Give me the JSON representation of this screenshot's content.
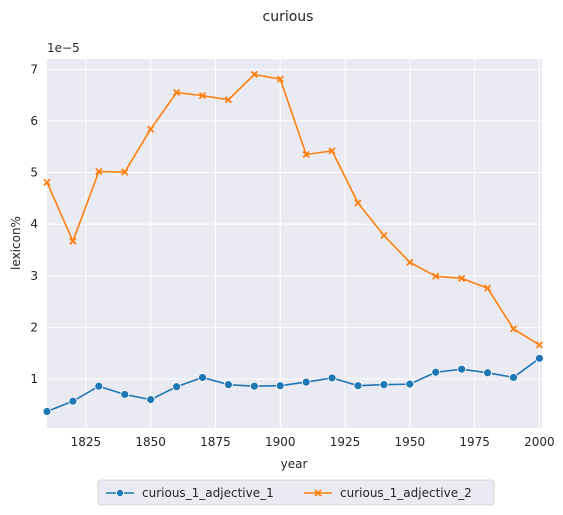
{
  "chart_data": {
    "type": "line",
    "title": "curious",
    "xlabel": "year",
    "ylabel": "lexicon%",
    "y_scale_note": "1e−5",
    "xlim": [
      1810,
      2001
    ],
    "ylim": [
      0.05,
      7.2
    ],
    "x_ticks": [
      1825,
      1850,
      1875,
      1900,
      1925,
      1950,
      1975,
      2000
    ],
    "y_ticks": [
      1,
      2,
      3,
      4,
      5,
      6,
      7
    ],
    "grid": true,
    "legend_placement": "bottom-center",
    "x": [
      1810,
      1820,
      1830,
      1840,
      1850,
      1860,
      1870,
      1880,
      1890,
      1900,
      1910,
      1920,
      1930,
      1940,
      1950,
      1960,
      1970,
      1980,
      1990,
      2000
    ],
    "series": [
      {
        "name": "curious_1_adjective_1",
        "color": "#1f77b4",
        "marker": "circle",
        "values": [
          0.37,
          0.57,
          0.86,
          0.7,
          0.6,
          0.85,
          1.03,
          0.89,
          0.86,
          0.87,
          0.94,
          1.02,
          0.87,
          0.89,
          0.9,
          1.13,
          1.19,
          1.12,
          1.03,
          1.4
        ]
      },
      {
        "name": "curious_1_adjective_2",
        "color": "#ff7f0e",
        "marker": "x",
        "values": [
          4.81,
          3.67,
          5.02,
          5.01,
          5.84,
          6.55,
          6.49,
          6.41,
          6.9,
          6.81,
          5.35,
          5.42,
          4.41,
          3.78,
          3.26,
          2.99,
          2.95,
          2.76,
          1.97,
          1.66
        ]
      }
    ]
  }
}
